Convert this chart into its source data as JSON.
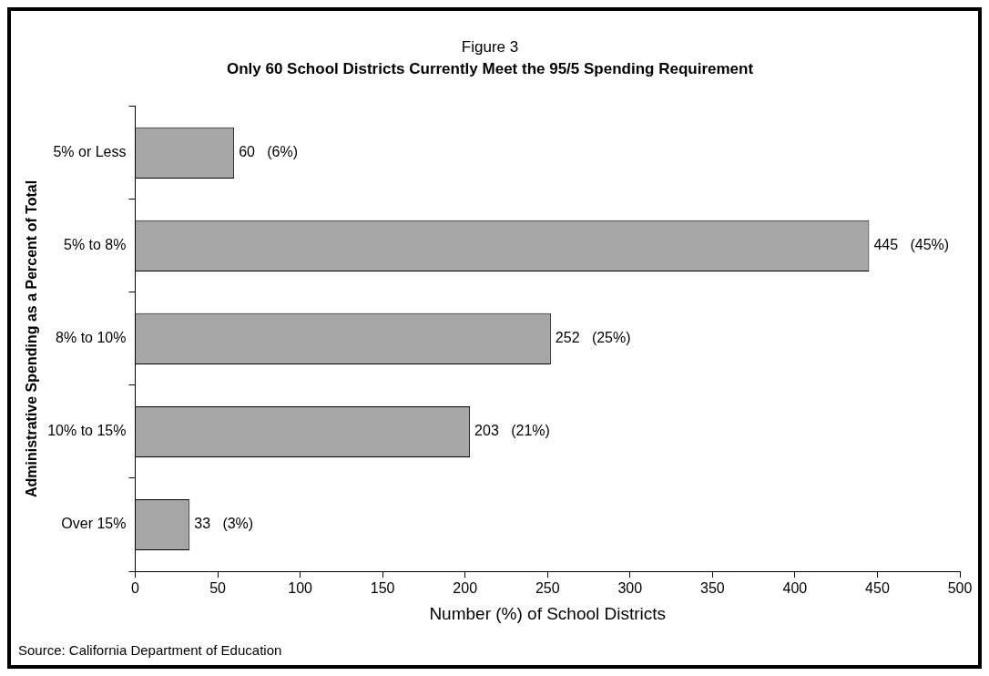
{
  "chart_data": {
    "type": "bar",
    "orientation": "horizontal",
    "title": "Figure 3",
    "subtitle": "Only 60 School Districts Currently Meet the 95/5 Spending Requirement",
    "xlabel": "Number (%) of School Districts",
    "ylabel": "Administrative Spending as a Percent of Total",
    "categories": [
      "5% or Less",
      "5% to 8%",
      "8% to 10%",
      "10% to 15%",
      "Over 15%"
    ],
    "values": [
      60,
      445,
      252,
      203,
      33
    ],
    "color": "#a6a6a6",
    "xlim": [
      0,
      500
    ],
    "xticks": [
      0,
      50,
      100,
      150,
      200,
      250,
      300,
      350,
      400,
      450,
      500
    ],
    "grid": false,
    "legend": false,
    "value_labels": [
      "60   (6%)",
      "445   (45%)",
      "252   (25%)",
      "203   (21%)",
      "33   (3%)"
    ],
    "annotations": [
      "Source: California Department of Education"
    ]
  }
}
